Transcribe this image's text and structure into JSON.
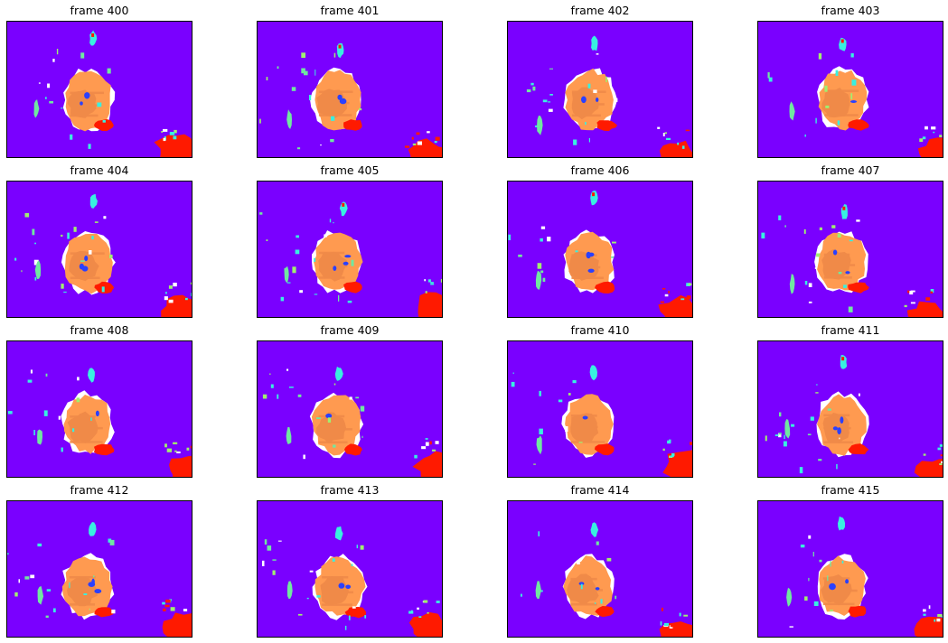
{
  "figure": {
    "colors": {
      "background": "#7a00ff",
      "body": "#ff9a50",
      "body_shade": "#f08a48",
      "edge": "#ff3010",
      "hot": "#ff1a00",
      "cyan": "#38f0e0",
      "teal": "#70e8a0",
      "green": "#a0f070",
      "blue": "#2a40ff",
      "white": "#ffffff"
    },
    "panels": [
      {
        "title": "frame 400"
      },
      {
        "title": "frame 401"
      },
      {
        "title": "frame 402"
      },
      {
        "title": "frame 403"
      },
      {
        "title": "frame 404"
      },
      {
        "title": "frame 405"
      },
      {
        "title": "frame 406"
      },
      {
        "title": "frame 407"
      },
      {
        "title": "frame 408"
      },
      {
        "title": "frame 409"
      },
      {
        "title": "frame 410"
      },
      {
        "title": "frame 411"
      },
      {
        "title": "frame 412"
      },
      {
        "title": "frame 413"
      },
      {
        "title": "frame 414"
      },
      {
        "title": "frame 415"
      }
    ]
  }
}
